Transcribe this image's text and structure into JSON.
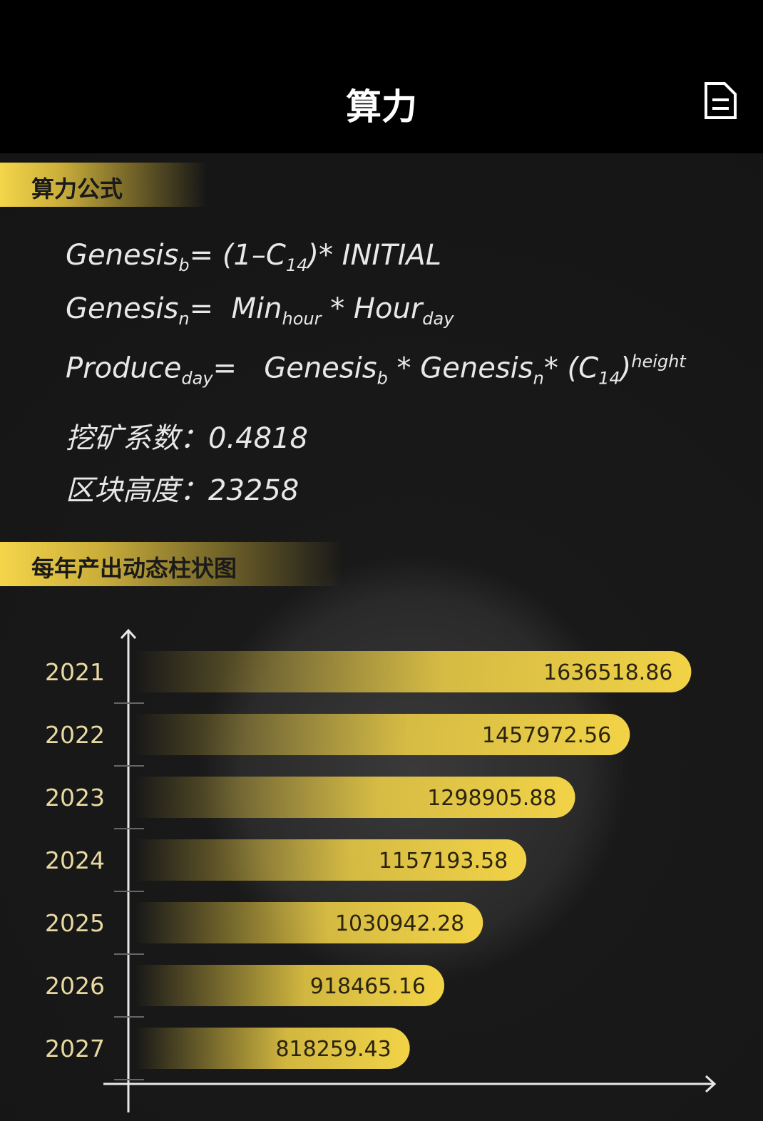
{
  "header": {
    "title": "算力"
  },
  "formula_section": {
    "title": "算力公式"
  },
  "formulas": [
    [
      {
        "text": "Genesis"
      },
      {
        "sub": "b"
      },
      {
        "text": "= (1–C"
      },
      {
        "sub": "14"
      },
      {
        "text": ")* INITIAL"
      }
    ],
    [
      {
        "text": "Genesis"
      },
      {
        "sub": "n"
      },
      {
        "text": "=  Min"
      },
      {
        "sub": "hour"
      },
      {
        "text": " * Hour"
      },
      {
        "sub": "day"
      }
    ],
    [
      {
        "text": "Produce"
      },
      {
        "sub": "day"
      },
      {
        "text": "=   Genesis"
      },
      {
        "sub": "b"
      },
      {
        "text": " * Genesis"
      },
      {
        "sub": "n"
      },
      {
        "text": "* (C"
      },
      {
        "sub": "14"
      },
      {
        "text": ")"
      },
      {
        "sup": "height"
      }
    ]
  ],
  "mining_coefficient": {
    "label": "挖矿系数：",
    "value": 0.4818
  },
  "block_height": {
    "label": "区块高度：",
    "value": 23258
  },
  "chart_section": {
    "title": "每年产出动态柱状图"
  },
  "chart_data": {
    "type": "hbar",
    "categories": [
      "2021",
      "2022",
      "2023",
      "2024",
      "2025",
      "2026",
      "2027"
    ],
    "values": [
      1636518.86,
      1457972.56,
      1298905.88,
      1157193.58,
      1030942.28,
      918465.16,
      818259.43
    ],
    "color": "#f2d347",
    "xlim": [
      0,
      1700000
    ]
  }
}
